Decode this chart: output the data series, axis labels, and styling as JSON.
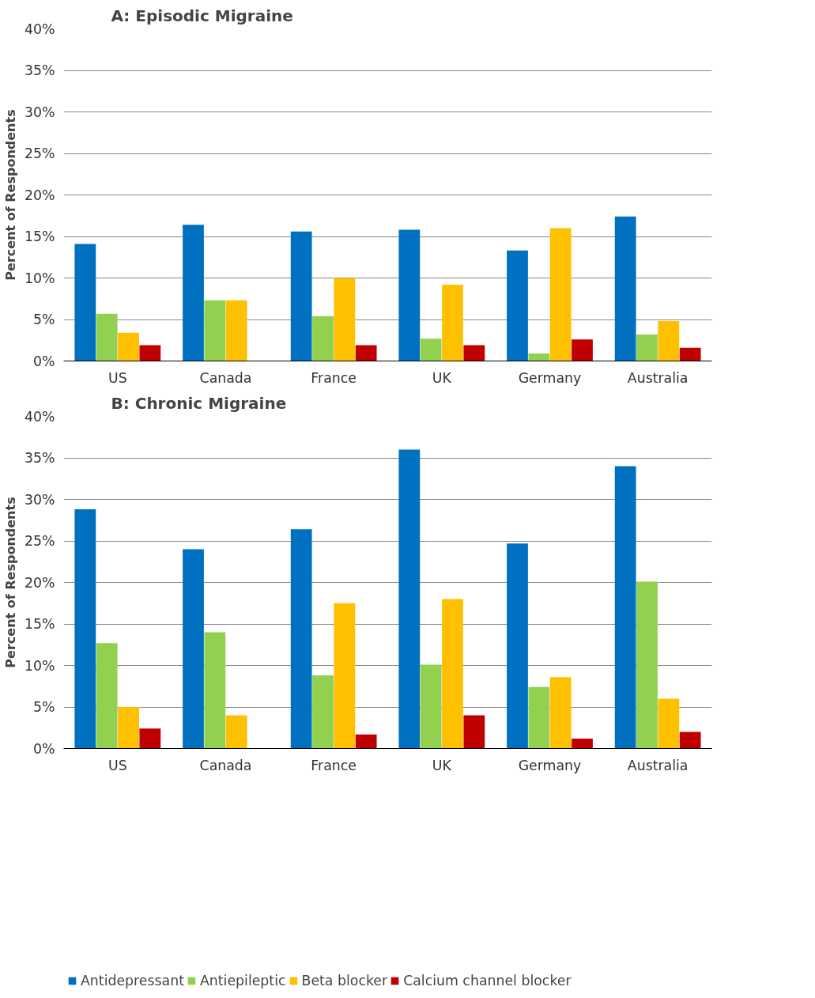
{
  "chart_data": [
    {
      "type": "bar",
      "title": "A: Episodic Migraine",
      "ylabel": "Percent of Respondents",
      "categories": [
        "US",
        "Canada",
        "France",
        "UK",
        "Germany",
        "Australia"
      ],
      "series": [
        {
          "color": "#0070c0",
          "values": [
            14.1,
            16.4,
            15.6,
            15.8,
            13.3,
            17.4
          ]
        },
        {
          "color": "#92d050",
          "values": [
            5.7,
            7.3,
            5.4,
            2.7,
            0.9,
            3.2
          ]
        },
        {
          "color": "#ffc000",
          "values": [
            3.4,
            7.3,
            10.0,
            9.2,
            16.0,
            4.8
          ]
        },
        {
          "color": "#c00000",
          "values": [
            1.9,
            null,
            1.9,
            1.9,
            2.6,
            1.6
          ]
        }
      ],
      "ylim": [
        0,
        40
      ],
      "yticks": [
        {
          "value": 0,
          "label": "0%"
        },
        {
          "value": 5,
          "label": "5%"
        },
        {
          "value": 10,
          "label": "10%"
        },
        {
          "value": 15,
          "label": "15%"
        },
        {
          "value": 20,
          "label": "20%"
        },
        {
          "value": 25,
          "label": "25%"
        },
        {
          "value": 30,
          "label": "30%"
        },
        {
          "value": 35,
          "label": "35%"
        },
        {
          "value": 40,
          "label": "40%"
        }
      ],
      "grid": "y"
    },
    {
      "type": "bar",
      "title": "B: Chronic Migraine",
      "ylabel": "Percent of Respondents",
      "categories": [
        "US",
        "Canada",
        "France",
        "UK",
        "Germany",
        "Australia"
      ],
      "series": [
        {
          "name": "Antidepressant",
          "color": "#0070c0",
          "values": [
            28.8,
            24.0,
            26.4,
            36.0,
            24.7,
            34.0
          ]
        },
        {
          "name": "Antiepileptic",
          "color": "#92d050",
          "values": [
            12.7,
            14.0,
            8.8,
            10.1,
            7.4,
            20.1
          ]
        },
        {
          "name": "Beta blocker",
          "color": "#ffc000",
          "values": [
            5.0,
            4.0,
            17.5,
            18.0,
            8.6,
            6.0
          ]
        },
        {
          "name": "Calcium channel blocker",
          "color": "#c00000",
          "values": [
            2.4,
            null,
            1.7,
            4.0,
            1.2,
            2.0
          ]
        }
      ],
      "ylim": [
        0,
        40
      ],
      "yticks": [
        {
          "value": 0,
          "label": "0%"
        },
        {
          "value": 5,
          "label": "5%"
        },
        {
          "value": 10,
          "label": "10%"
        },
        {
          "value": 15,
          "label": "15%"
        },
        {
          "value": 20,
          "label": "20%"
        },
        {
          "value": 25,
          "label": "25%"
        },
        {
          "value": 30,
          "label": "30%"
        },
        {
          "value": 35,
          "label": "35%"
        },
        {
          "value": 40,
          "label": "40%"
        }
      ],
      "grid": "y",
      "legend": "bottom"
    }
  ]
}
